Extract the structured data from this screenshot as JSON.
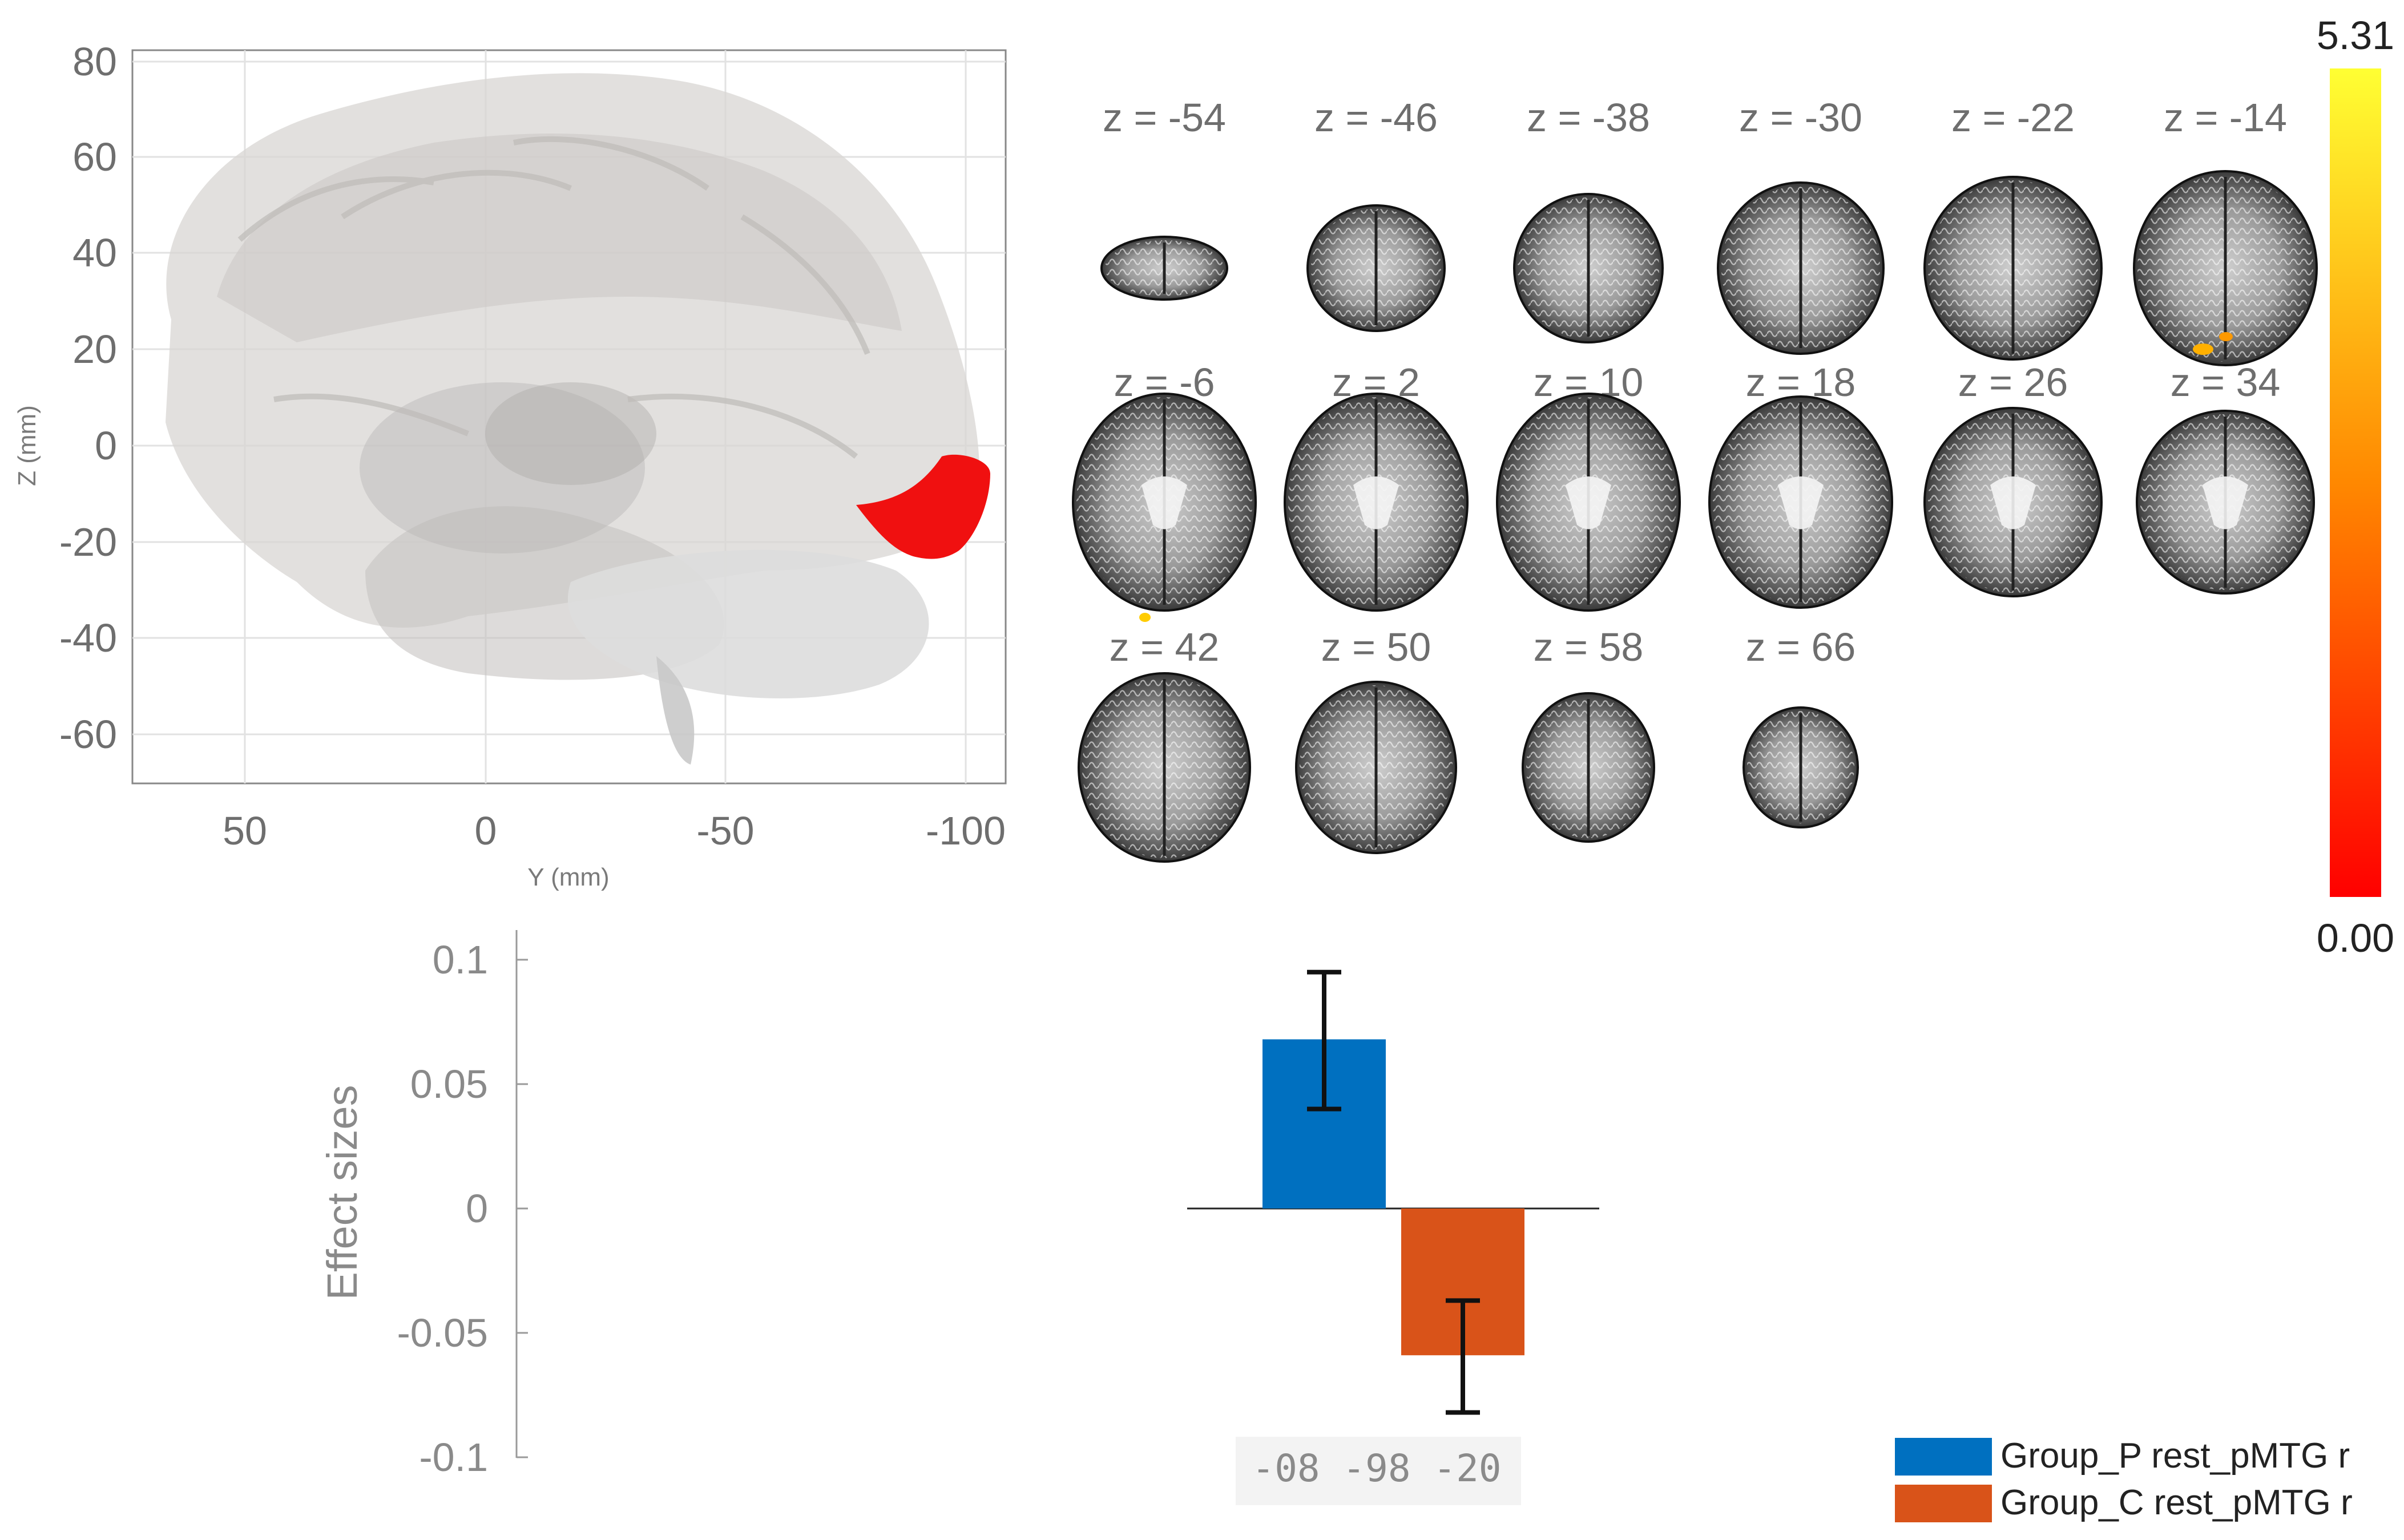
{
  "brain_3d_panel": {
    "ylabel": "Z (mm)",
    "xlabel": "Y (mm)",
    "z_ticks": [
      "80",
      "60",
      "40",
      "20",
      "0",
      "-20",
      "-40",
      "-60"
    ],
    "y_ticks": [
      "50",
      "0",
      "-50",
      "-100"
    ],
    "cluster_color": "#f01010"
  },
  "slices_panel": {
    "labels": [
      "z = -54",
      "z = -46",
      "z = -38",
      "z = -30",
      "z = -22",
      "z = -14",
      "z = -6",
      "z = 2",
      "z = 10",
      "z = 18",
      "z = 26",
      "z = 34",
      "z = 42",
      "z = 50",
      "z = 58",
      "z = 66"
    ]
  },
  "colorbar": {
    "max_label": "5.31",
    "min_label": "0.00",
    "colors": [
      "#ffff33",
      "#ff8800",
      "#ff0000"
    ]
  },
  "chart_data": {
    "type": "bar",
    "ylabel": "Effect sizes",
    "y_ticks": [
      "0.1",
      "0.05",
      "0",
      "-0.05",
      "-0.1"
    ],
    "ylim": [
      -0.1,
      0.1
    ],
    "x_tick_label": "-08 -98 -20",
    "series": [
      {
        "name": "Group_P rest_pMTG r",
        "value": 0.068,
        "error_low": 0.04,
        "error_high": 0.095,
        "color": "#0070c0"
      },
      {
        "name": "Group_C rest_pMTG r",
        "value": -0.059,
        "error_low": -0.082,
        "error_high": -0.037,
        "color": "#d95319"
      }
    ],
    "legend_position": "bottom-right"
  }
}
